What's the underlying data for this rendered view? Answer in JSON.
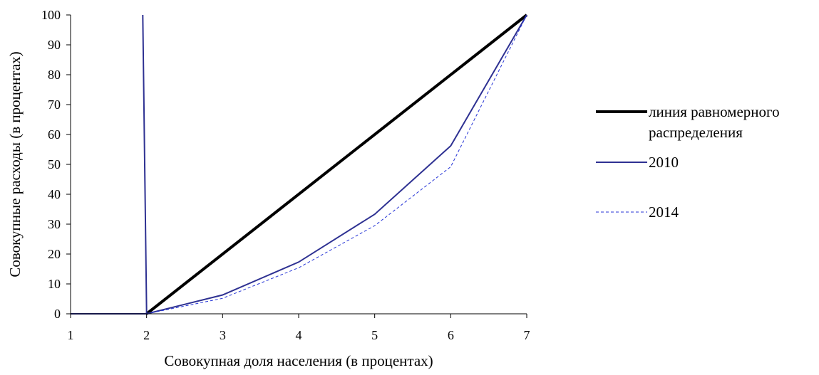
{
  "chart_data": {
    "type": "line",
    "title": "",
    "xlabel": "Совокупная доля населения (в процентах)",
    "ylabel": "Совокупные расходы (в процентах)",
    "x_ticks": [
      "1",
      "2",
      "3",
      "4",
      "5",
      "6",
      "7"
    ],
    "y_ticks": [
      "0",
      "10",
      "20",
      "30",
      "40",
      "50",
      "60",
      "70",
      "80",
      "90",
      "100"
    ],
    "xlim": [
      1,
      7
    ],
    "ylim": [
      0,
      100
    ],
    "grid": false,
    "legend_position": "right",
    "series": [
      {
        "name_lines": [
          "линия равномерного",
          "распределения"
        ],
        "color": "#000000",
        "style": "solid-thick",
        "points": [
          [
            2,
            0
          ],
          [
            7,
            100
          ]
        ]
      },
      {
        "name_lines": [
          "2010"
        ],
        "color": "#2e3192",
        "style": "solid",
        "points": [
          [
            1,
            0
          ],
          [
            2,
            0
          ],
          [
            1.95,
            100
          ],
          [
            2,
            0
          ],
          [
            3,
            6.3
          ],
          [
            4,
            17.3
          ],
          [
            5,
            33.3
          ],
          [
            6,
            56.2
          ],
          [
            7,
            100
          ]
        ]
      },
      {
        "name_lines": [
          "2014"
        ],
        "color": "#2433d6",
        "style": "dashed",
        "points": [
          [
            2,
            0
          ],
          [
            3,
            5.2
          ],
          [
            4,
            15.4
          ],
          [
            5,
            29.5
          ],
          [
            6,
            49.2
          ],
          [
            7,
            100
          ]
        ]
      }
    ]
  }
}
